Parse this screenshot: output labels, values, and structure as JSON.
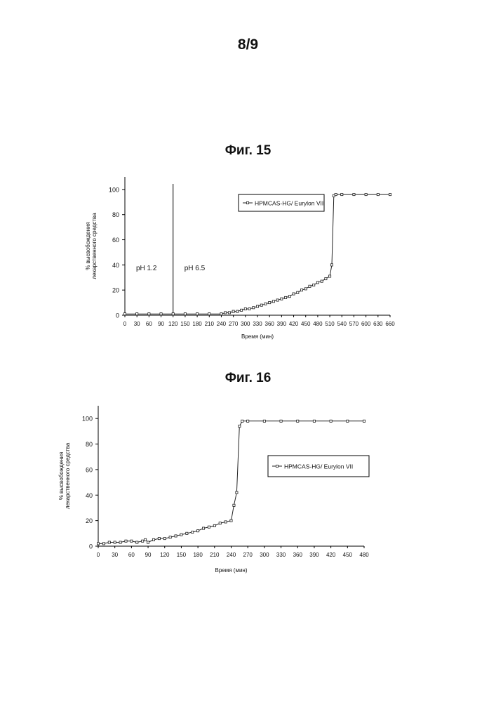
{
  "page": {
    "number": "8/9"
  },
  "chart_data": [
    {
      "type": "line",
      "title": "Фиг. 15",
      "xlabel": "Время (мин)",
      "ylabel": [
        "% высвобождения",
        "лекарственного средства"
      ],
      "xlim": [
        0,
        660
      ],
      "ylim": [
        0,
        110
      ],
      "xticks": [
        0,
        30,
        60,
        90,
        120,
        150,
        180,
        210,
        240,
        270,
        300,
        330,
        360,
        390,
        420,
        450,
        480,
        510,
        540,
        570,
        600,
        630,
        660
      ],
      "yticks": [
        0,
        20,
        40,
        60,
        80,
        100
      ],
      "annotations": {
        "vline_x": 120,
        "left_label": "pH 1.2",
        "right_label": "pH 6.5"
      },
      "legend": {
        "position": "top-right"
      },
      "series": [
        {
          "name": "HPMCAS-HG/ Eurylon VII",
          "x": [
            0,
            30,
            60,
            90,
            120,
            150,
            180,
            210,
            240,
            250,
            260,
            270,
            280,
            290,
            300,
            310,
            320,
            330,
            340,
            350,
            360,
            370,
            380,
            390,
            400,
            410,
            420,
            430,
            440,
            450,
            460,
            470,
            480,
            490,
            500,
            510,
            515,
            520,
            525,
            540,
            570,
            600,
            630,
            660
          ],
          "y": [
            1,
            1,
            1,
            1,
            1,
            1,
            1,
            1,
            1,
            2,
            2,
            3,
            3,
            4,
            5,
            5,
            6,
            7,
            8,
            9,
            10,
            11,
            12,
            13,
            14,
            15,
            17,
            18,
            20,
            21,
            23,
            24,
            26,
            27,
            29,
            31,
            40,
            95,
            96,
            96,
            96,
            96,
            96,
            96
          ]
        }
      ]
    },
    {
      "type": "line",
      "title": "Фиг. 16",
      "xlabel": "Время (мин)",
      "ylabel": [
        "% высвобождения",
        "лекарственного средства"
      ],
      "xlim": [
        0,
        480
      ],
      "ylim": [
        0,
        110
      ],
      "xticks": [
        0,
        30,
        60,
        90,
        120,
        150,
        180,
        210,
        240,
        270,
        300,
        330,
        360,
        390,
        420,
        450,
        480
      ],
      "yticks": [
        0,
        20,
        40,
        60,
        80,
        100
      ],
      "legend": {
        "position": "right"
      },
      "series": [
        {
          "name": "HPMCAS-HG/ Eurylon VII",
          "x": [
            0,
            10,
            20,
            30,
            40,
            50,
            60,
            70,
            80,
            85,
            90,
            100,
            110,
            120,
            130,
            140,
            150,
            160,
            170,
            180,
            190,
            200,
            210,
            220,
            230,
            240,
            245,
            250,
            255,
            260,
            270,
            300,
            330,
            360,
            390,
            420,
            450,
            480
          ],
          "y": [
            2,
            2,
            3,
            3,
            3,
            4,
            4,
            3,
            4,
            5,
            3,
            5,
            6,
            6,
            7,
            8,
            9,
            10,
            11,
            12,
            14,
            15,
            16,
            18,
            19,
            20,
            32,
            42,
            94,
            98,
            98,
            98,
            98,
            98,
            98,
            98,
            98,
            98
          ]
        }
      ]
    }
  ]
}
